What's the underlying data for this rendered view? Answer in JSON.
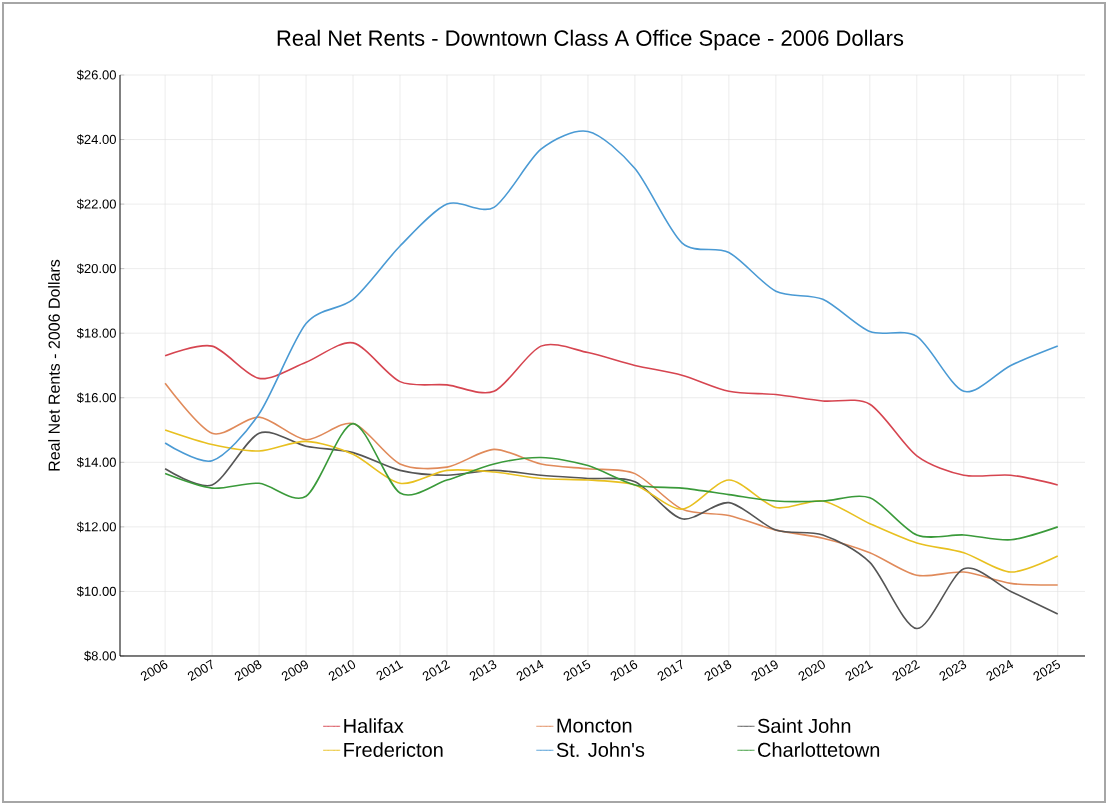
{
  "chart_data": {
    "type": "line",
    "title": "Real Net Rents - Downtown Class A Office Space - 2006 Dollars",
    "ylabel": "Real Net Rents - 2006 Dollars",
    "categories": [
      "2006",
      "2007",
      "2008",
      "2009",
      "2010",
      "2011",
      "2012",
      "2013",
      "2014",
      "2015",
      "2016",
      "2017",
      "2018",
      "2019",
      "2020",
      "2021",
      "2022",
      "2023",
      "2024",
      "2025"
    ],
    "series": [
      {
        "name": "Halifax",
        "color": "#d64550",
        "values": [
          17.3,
          17.6,
          16.6,
          17.1,
          17.7,
          16.5,
          16.4,
          16.2,
          17.6,
          17.4,
          17.0,
          16.7,
          16.2,
          16.1,
          15.9,
          15.8,
          14.2,
          13.6,
          13.6,
          13.3
        ]
      },
      {
        "name": "Moncton",
        "color": "#e08a5a",
        "values": [
          16.45,
          14.9,
          15.4,
          14.7,
          15.2,
          13.95,
          13.85,
          14.4,
          13.95,
          13.8,
          13.65,
          12.55,
          12.35,
          11.9,
          11.65,
          11.2,
          10.5,
          10.6,
          10.25,
          10.2
        ]
      },
      {
        "name": "Saint John",
        "color": "#555555",
        "values": [
          13.8,
          13.3,
          14.9,
          14.5,
          14.3,
          13.75,
          13.6,
          13.75,
          13.6,
          13.5,
          13.4,
          12.25,
          12.75,
          11.9,
          11.75,
          10.9,
          8.85,
          10.7,
          10.0,
          9.3
        ]
      },
      {
        "name": "Fredericton",
        "color": "#e8c020",
        "values": [
          15.0,
          14.55,
          14.35,
          14.65,
          14.25,
          13.35,
          13.75,
          13.7,
          13.5,
          13.45,
          13.3,
          12.55,
          13.45,
          12.6,
          12.8,
          12.1,
          11.5,
          11.2,
          10.6,
          11.1
        ]
      },
      {
        "name": "St. John's",
        "color": "#4a9ad4",
        "values": [
          14.6,
          14.05,
          15.5,
          18.3,
          19.05,
          20.7,
          22.0,
          21.9,
          23.7,
          24.25,
          23.1,
          20.8,
          20.5,
          19.3,
          19.05,
          18.05,
          17.9,
          16.2,
          17.0,
          17.6
        ]
      },
      {
        "name": "Charlottetown",
        "color": "#3a9a3a",
        "values": [
          13.65,
          13.2,
          13.35,
          12.95,
          15.2,
          13.05,
          13.45,
          13.95,
          14.15,
          13.9,
          13.3,
          13.2,
          13.0,
          12.8,
          12.8,
          12.9,
          11.75,
          11.75,
          11.6,
          12.0
        ]
      }
    ],
    "ylim": [
      8,
      26
    ],
    "yticks": [
      {
        "value": 8,
        "label": "$8.00"
      },
      {
        "value": 10,
        "label": "$10.00"
      },
      {
        "value": 12,
        "label": "$12.00"
      },
      {
        "value": 14,
        "label": "$14.00"
      },
      {
        "value": 16,
        "label": "$16.00"
      },
      {
        "value": 18,
        "label": "$18.00"
      },
      {
        "value": 20,
        "label": "$20.00"
      },
      {
        "value": 22,
        "label": "$22.00"
      },
      {
        "value": 24,
        "label": "$24.00"
      },
      {
        "value": 26,
        "label": "$26.00"
      }
    ],
    "grid": true,
    "legend": "bottom",
    "marker": "none",
    "line_style": "solid"
  }
}
